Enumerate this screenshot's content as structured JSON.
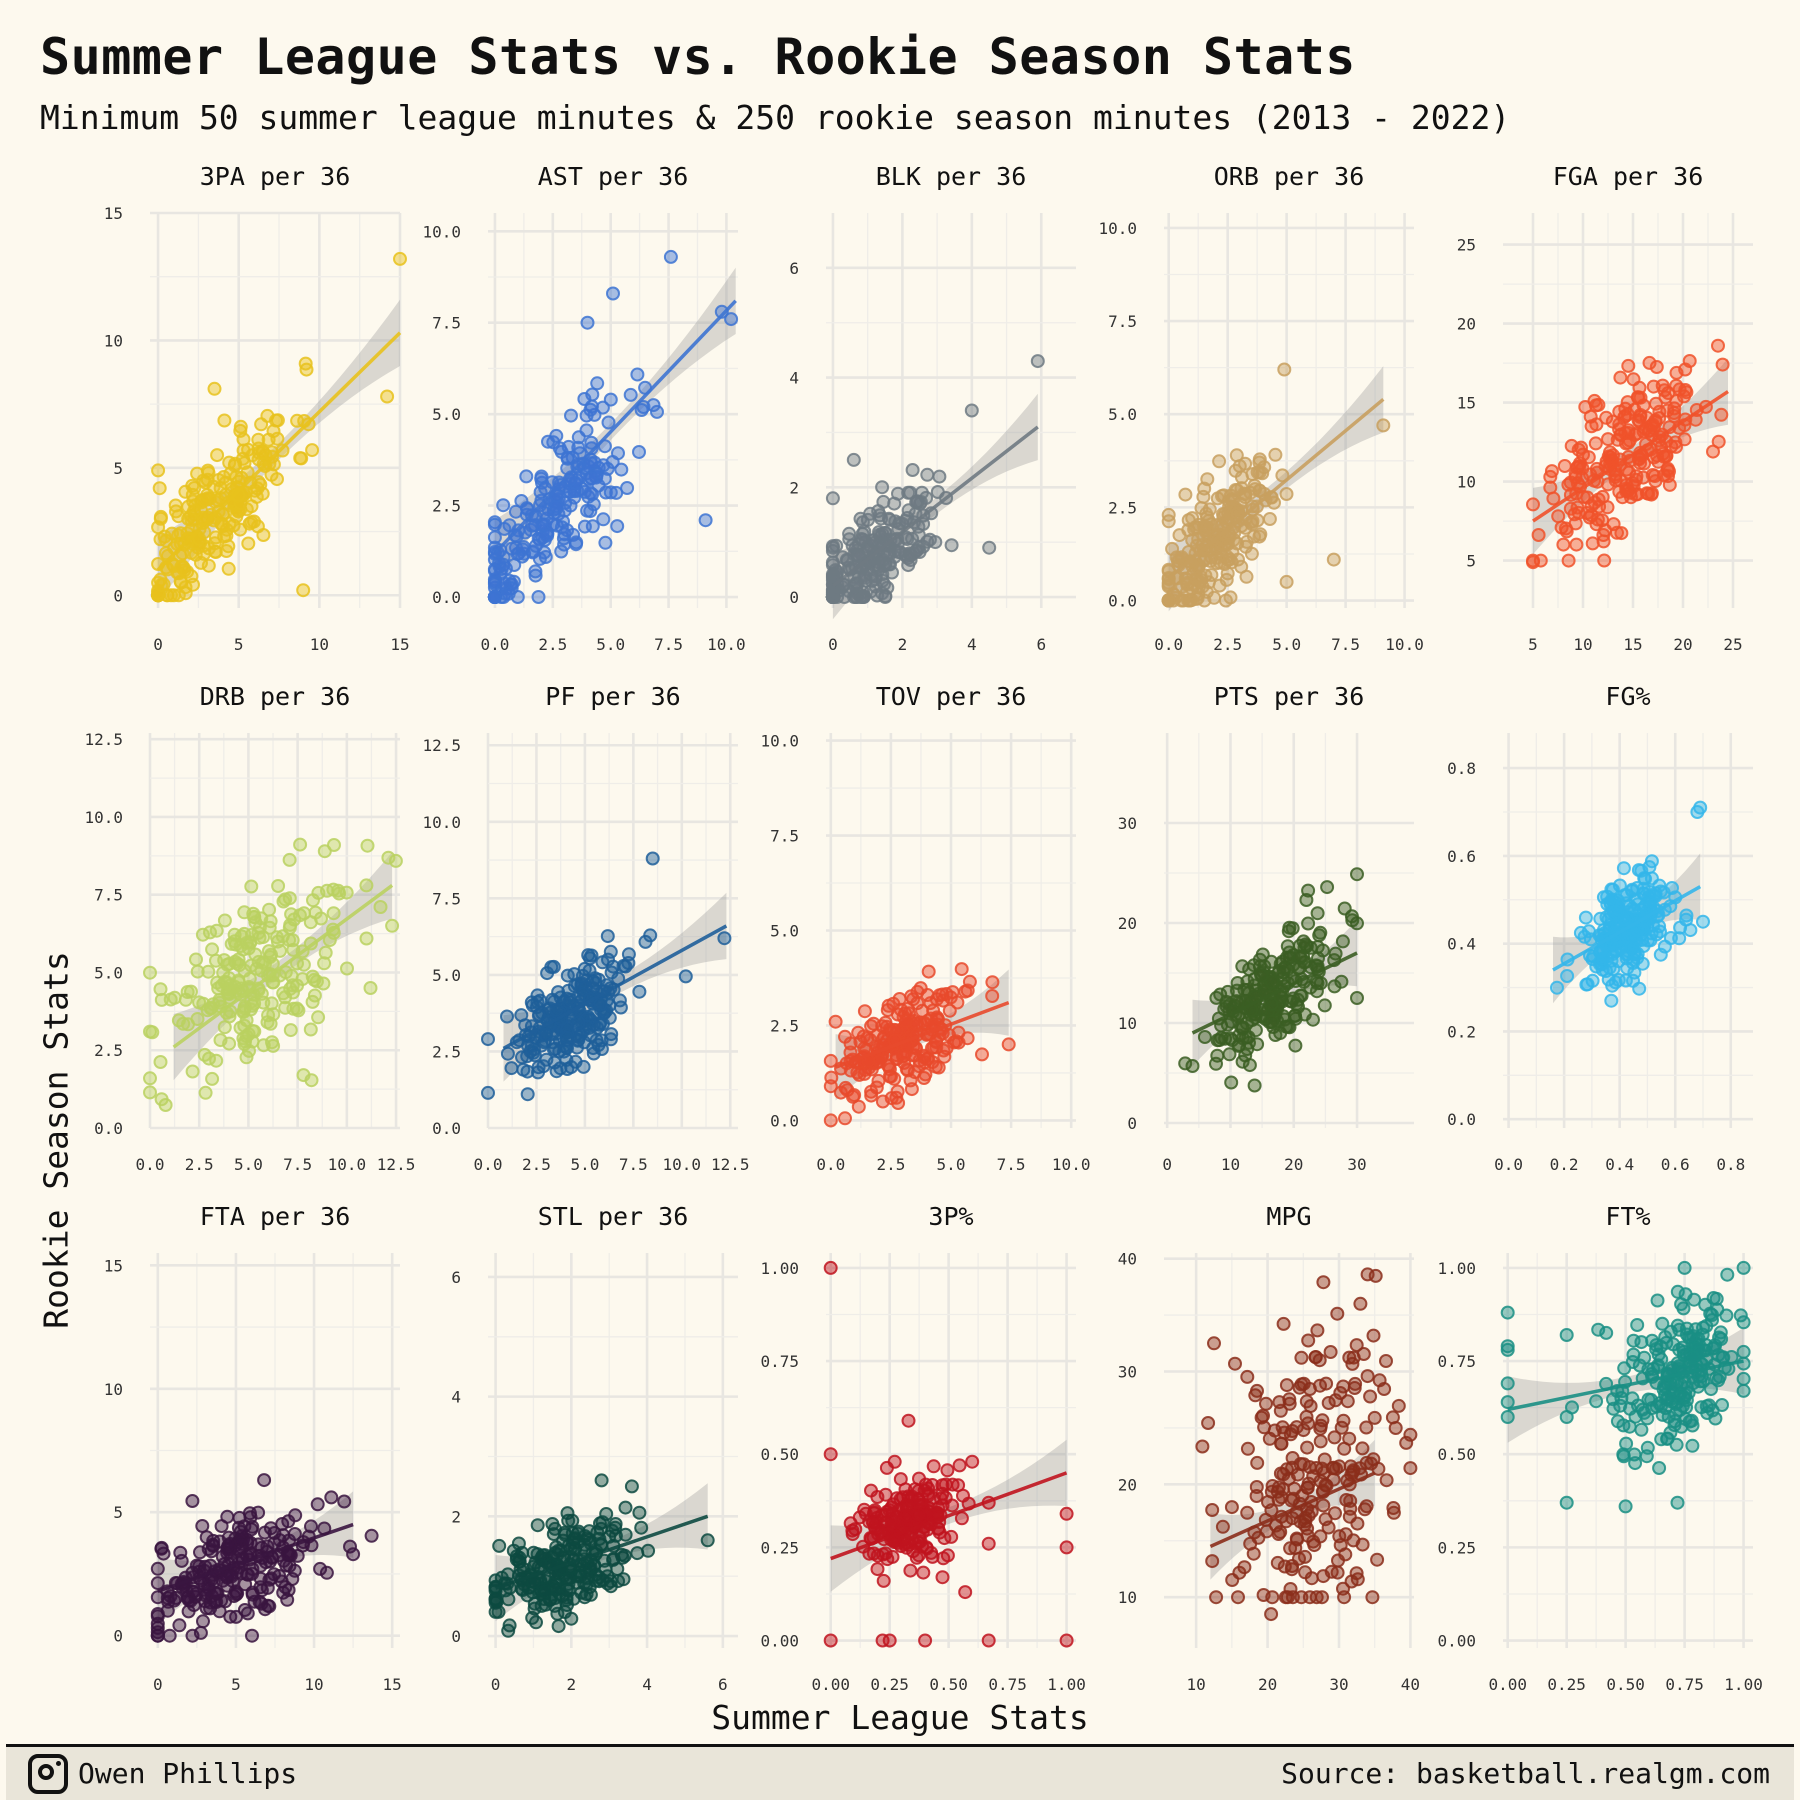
{
  "title": "Summer League Stats vs. Rookie Season Stats",
  "subtitle": "Minimum 50 summer league minutes & 250 rookie season minutes (2013 - 2022)",
  "footer": {
    "author": "Owen Phillips",
    "source": "Source: basketball.realgm.com",
    "icon": "instagram-icon"
  },
  "chart_data": {
    "type": "scatter",
    "xlabel": "Summer League Stats",
    "ylabel": "Rookie Season Stats",
    "facets": [
      {
        "title": "3PA per 36",
        "color": "#e8c21d",
        "xlim": [
          -0.5,
          15
        ],
        "ylim": [
          -0.5,
          15
        ],
        "xticks": [
          0,
          5,
          10,
          15
        ],
        "yticks": [
          0,
          5,
          10,
          15
        ],
        "fmt": 0,
        "fit": [
          [
            0,
            1.0
          ],
          [
            15,
            10.3
          ]
        ],
        "seed": 11,
        "points": [
          [
            15,
            13.2
          ],
          [
            14.2,
            7.8
          ],
          [
            9,
            0.2
          ],
          [
            3.5,
            8.1
          ],
          [
            0,
            0.1
          ],
          [
            0.2,
            0.4
          ],
          [
            0,
            4.9
          ],
          [
            0.1,
            4.2
          ]
        ],
        "cloud": {
          "n": 230,
          "cx": 3.6,
          "cy": 3.3,
          "sx": 2.4,
          "sy": 1.9,
          "r": 0.78
        }
      },
      {
        "title": "AST per 36",
        "color": "#3d74d2",
        "xlim": [
          -0.3,
          10.5
        ],
        "ylim": [
          -0.3,
          10.5
        ],
        "xticks": [
          0.0,
          2.5,
          5.0,
          7.5,
          10.0
        ],
        "yticks": [
          0.0,
          2.5,
          5.0,
          7.5,
          10.0
        ],
        "fmt": 1,
        "fit": [
          [
            0,
            1.2
          ],
          [
            10.4,
            8.1
          ]
        ],
        "seed": 22,
        "points": [
          [
            7.6,
            9.3
          ],
          [
            5.1,
            8.3
          ],
          [
            9.1,
            2.1
          ],
          [
            10.2,
            7.6
          ],
          [
            9.8,
            7.8
          ],
          [
            4,
            7.5
          ]
        ],
        "cloud": {
          "n": 230,
          "cx": 2.4,
          "cy": 2.3,
          "sx": 1.8,
          "sy": 1.5,
          "r": 0.82
        }
      },
      {
        "title": "BLK per 36",
        "color": "#6f7a82",
        "xlim": [
          -0.2,
          7
        ],
        "ylim": [
          -0.2,
          7
        ],
        "xticks": [
          0,
          2,
          4,
          6
        ],
        "yticks": [
          0,
          2,
          4,
          6
        ],
        "fmt": 0,
        "fit": [
          [
            0,
            0.2
          ],
          [
            5.9,
            3.1
          ]
        ],
        "seed": 33,
        "points": [
          [
            5.9,
            4.3
          ],
          [
            4,
            3.4
          ],
          [
            4.5,
            0.9
          ],
          [
            0,
            1.8
          ],
          [
            0.6,
            2.5
          ]
        ],
        "cloud": {
          "n": 230,
          "cx": 1.1,
          "cy": 0.7,
          "sx": 1.0,
          "sy": 0.6,
          "r": 0.7
        }
      },
      {
        "title": "ORB per 36",
        "color": "#c8a05f",
        "xlim": [
          -0.2,
          10.4
        ],
        "ylim": [
          -0.2,
          10.4
        ],
        "xticks": [
          0.0,
          2.5,
          5.0,
          7.5,
          10.0
        ],
        "yticks": [
          0.0,
          2.5,
          5.0,
          7.5,
          10.0
        ],
        "fmt": 1,
        "fit": [
          [
            0,
            0.6
          ],
          [
            9.1,
            5.4
          ]
        ],
        "seed": 44,
        "points": [
          [
            9.1,
            4.7
          ],
          [
            4.9,
            6.2
          ],
          [
            7,
            1.1
          ],
          [
            5,
            0.5
          ]
        ],
        "cloud": {
          "n": 230,
          "cx": 2.0,
          "cy": 1.6,
          "sx": 1.4,
          "sy": 1.2,
          "r": 0.7
        }
      },
      {
        "title": "FGA per 36",
        "color": "#f0522a",
        "xlim": [
          2,
          27
        ],
        "ylim": [
          2,
          27
        ],
        "xticks": [
          5,
          10,
          15,
          20,
          25
        ],
        "yticks": [
          5,
          10,
          15,
          20,
          25
        ],
        "fmt": 0,
        "fit": [
          [
            5,
            7.5
          ],
          [
            24.5,
            15.7
          ]
        ],
        "seed": 55,
        "points": [
          [
            5,
            4.9
          ],
          [
            23.5,
            18.6
          ],
          [
            23,
            11.9
          ]
        ],
        "cloud": {
          "n": 230,
          "cx": 14,
          "cy": 11.5,
          "sx": 4.0,
          "sy": 2.7,
          "r": 0.6
        }
      },
      {
        "title": "DRB per 36",
        "color": "#bad160",
        "xlim": [
          0,
          12.7
        ],
        "ylim": [
          0,
          12.7
        ],
        "xticks": [
          0.0,
          2.5,
          5.0,
          7.5,
          10.0,
          12.5
        ],
        "yticks": [
          0.0,
          2.5,
          5.0,
          7.5,
          10.0,
          12.5
        ],
        "fmt": 1,
        "fit": [
          [
            1.2,
            2.6
          ],
          [
            12.3,
            7.8
          ]
        ],
        "seed": 66,
        "points": [
          [
            12.3,
            6.5
          ],
          [
            11.2,
            4.5
          ],
          [
            7.8,
            1.7
          ]
        ],
        "cloud": {
          "n": 230,
          "cx": 5.5,
          "cy": 4.8,
          "sx": 2.3,
          "sy": 1.6,
          "r": 0.55
        }
      },
      {
        "title": "PF per 36",
        "color": "#1f5f9a",
        "xlim": [
          0,
          12.9
        ],
        "ylim": [
          0,
          12.9
        ],
        "xticks": [
          0.0,
          2.5,
          5.0,
          7.5,
          10.0,
          12.5
        ],
        "yticks": [
          0.0,
          2.5,
          5.0,
          7.5,
          10.0,
          12.5
        ],
        "fmt": 1,
        "fit": [
          [
            0.8,
            2.6
          ],
          [
            12.3,
            6.6
          ]
        ],
        "seed": 77,
        "points": [
          [
            8.5,
            8.8
          ],
          [
            12.2,
            6.2
          ]
        ],
        "cloud": {
          "n": 230,
          "cx": 4.3,
          "cy": 3.6,
          "sx": 1.7,
          "sy": 1.0,
          "r": 0.55
        }
      },
      {
        "title": "TOV per 36",
        "color": "#e84a2c",
        "xlim": [
          -0.2,
          10.2
        ],
        "ylim": [
          -0.2,
          10.2
        ],
        "xticks": [
          0.0,
          2.5,
          5.0,
          7.5,
          10.0
        ],
        "yticks": [
          0.0,
          2.5,
          5.0,
          7.5,
          10.0
        ],
        "fmt": 1,
        "fit": [
          [
            0.2,
            1.4
          ],
          [
            7.4,
            3.1
          ]
        ],
        "seed": 88,
        "points": [
          [
            7.4,
            2.0
          ],
          [
            0.2,
            2.6
          ]
        ],
        "cloud": {
          "n": 230,
          "cx": 3.0,
          "cy": 2.0,
          "sx": 1.3,
          "sy": 0.7,
          "r": 0.5
        }
      },
      {
        "title": "PTS per 36",
        "color": "#3b5e23",
        "xlim": [
          -0.5,
          39
        ],
        "ylim": [
          -0.5,
          39
        ],
        "xticks": [
          0,
          10,
          20,
          30
        ],
        "yticks": [
          0,
          10,
          20,
          30
        ],
        "fmt": 0,
        "fit": [
          [
            4,
            9
          ],
          [
            30,
            17
          ]
        ],
        "seed": 99,
        "points": [
          [
            4,
            5.7
          ],
          [
            30,
            12.5
          ],
          [
            22,
            22.3
          ]
        ],
        "cloud": {
          "n": 230,
          "cx": 17,
          "cy": 13,
          "sx": 5.0,
          "sy": 3.2,
          "r": 0.55
        }
      },
      {
        "title": "FG%",
        "color": "#34b6ea",
        "xlim": [
          -0.02,
          0.88
        ],
        "ylim": [
          -0.02,
          0.88
        ],
        "xticks": [
          0.0,
          0.2,
          0.4,
          0.6,
          0.8
        ],
        "yticks": [
          0.0,
          0.2,
          0.4,
          0.6,
          0.8
        ],
        "fmt": 1,
        "fit": [
          [
            0.16,
            0.34
          ],
          [
            0.69,
            0.53
          ]
        ],
        "seed": 111,
        "points": [
          [
            0.69,
            0.71
          ],
          [
            0.68,
            0.7
          ],
          [
            0.37,
            0.27
          ],
          [
            0.7,
            0.45
          ]
        ],
        "cloud": {
          "n": 230,
          "cx": 0.43,
          "cy": 0.43,
          "sx": 0.09,
          "sy": 0.06,
          "r": 0.45
        }
      },
      {
        "title": "FTA per 36",
        "color": "#3a1540",
        "xlim": [
          -0.5,
          15.5
        ],
        "ylim": [
          -0.5,
          15.5
        ],
        "xticks": [
          0,
          5,
          10,
          15
        ],
        "yticks": [
          0,
          5,
          10,
          15
        ],
        "fmt": 0,
        "fit": [
          [
            0,
            1.8
          ],
          [
            12.5,
            4.5
          ]
        ],
        "seed": 121,
        "points": [
          [
            12.5,
            3.3
          ],
          [
            11.1,
            5.6
          ],
          [
            6.8,
            6.3
          ]
        ],
        "cloud": {
          "n": 230,
          "cx": 4.8,
          "cy": 2.6,
          "sx": 2.7,
          "sy": 1.1,
          "r": 0.45
        }
      },
      {
        "title": "STL per 36",
        "color": "#0d4a41",
        "xlim": [
          -0.2,
          6.4
        ],
        "ylim": [
          -0.2,
          6.4
        ],
        "xticks": [
          0,
          2,
          4,
          6
        ],
        "yticks": [
          0,
          2,
          4,
          6
        ],
        "fmt": 0,
        "fit": [
          [
            0,
            0.8
          ],
          [
            5.6,
            2.0
          ]
        ],
        "seed": 131,
        "points": [
          [
            5.6,
            1.6
          ],
          [
            3.6,
            2.5
          ],
          [
            2.8,
            2.6
          ]
        ],
        "cloud": {
          "n": 230,
          "cx": 1.6,
          "cy": 1.1,
          "sx": 0.95,
          "sy": 0.42,
          "r": 0.5
        }
      },
      {
        "title": "3P%",
        "color": "#c0141e",
        "xlim": [
          -0.02,
          1.04
        ],
        "ylim": [
          -0.02,
          1.04
        ],
        "xticks": [
          0.0,
          0.25,
          0.5,
          0.75,
          1.0
        ],
        "yticks": [
          0.0,
          0.25,
          0.5,
          0.75,
          1.0
        ],
        "fmt": 2,
        "fit": [
          [
            0,
            0.22
          ],
          [
            1,
            0.45
          ]
        ],
        "seed": 141,
        "points": [
          [
            0,
            1.0
          ],
          [
            0.33,
            0.59
          ],
          [
            0,
            0.5
          ],
          [
            0,
            0.0
          ],
          [
            0.22,
            0.0
          ],
          [
            0.25,
            0.0
          ],
          [
            0.4,
            0.0
          ],
          [
            0.67,
            0.0
          ],
          [
            1,
            0.0
          ],
          [
            1,
            0.25
          ],
          [
            1,
            0.34
          ],
          [
            0.6,
            0.48
          ],
          [
            0.57,
            0.13
          ],
          [
            0.67,
            0.26
          ],
          [
            0.67,
            0.37
          ]
        ],
        "cloud": {
          "n": 200,
          "cx": 0.33,
          "cy": 0.32,
          "sx": 0.1,
          "sy": 0.055,
          "r": 0.2
        }
      },
      {
        "title": "MPG",
        "color": "#8b2e1b",
        "xlim": [
          5.5,
          40.5
        ],
        "ylim": [
          5.5,
          40.5
        ],
        "xticks": [
          10,
          20,
          30,
          40
        ],
        "yticks": [
          10,
          20,
          30,
          40
        ],
        "fmt": 0,
        "fit": [
          [
            12,
            14.5
          ],
          [
            35,
            21
          ]
        ],
        "seed": 151,
        "points": [
          [
            34,
            38.6
          ],
          [
            12.5,
            32.5
          ],
          [
            20.5,
            8.5
          ],
          [
            33,
            36
          ]
        ],
        "cloud": {
          "n": 230,
          "cx": 26,
          "cy": 20,
          "sx": 5.5,
          "sy": 6.0,
          "r": 0.25
        }
      },
      {
        "title": "FT%",
        "color": "#1a8f84",
        "xlim": [
          -0.02,
          1.04
        ],
        "ylim": [
          -0.02,
          1.04
        ],
        "xticks": [
          0.0,
          0.25,
          0.5,
          0.75,
          1.0
        ],
        "yticks": [
          0.0,
          0.25,
          0.5,
          0.75,
          1.0
        ],
        "fmt": 2,
        "fit": [
          [
            0,
            0.62
          ],
          [
            1,
            0.75
          ]
        ],
        "seed": 161,
        "points": [
          [
            0,
            0.88
          ],
          [
            0,
            0.79
          ],
          [
            0,
            0.78
          ],
          [
            0,
            0.69
          ],
          [
            0,
            0.64
          ],
          [
            0,
            0.6
          ],
          [
            0.25,
            0.82
          ],
          [
            0.25,
            0.37
          ],
          [
            0.25,
            0.6
          ],
          [
            0.5,
            0.36
          ],
          [
            0.72,
            0.37
          ],
          [
            0.75,
            1.0
          ],
          [
            1,
            1.0
          ],
          [
            1,
            0.67
          ]
        ],
        "cloud": {
          "n": 220,
          "cx": 0.72,
          "cy": 0.72,
          "sx": 0.14,
          "sy": 0.1,
          "r": 0.3
        }
      }
    ]
  }
}
